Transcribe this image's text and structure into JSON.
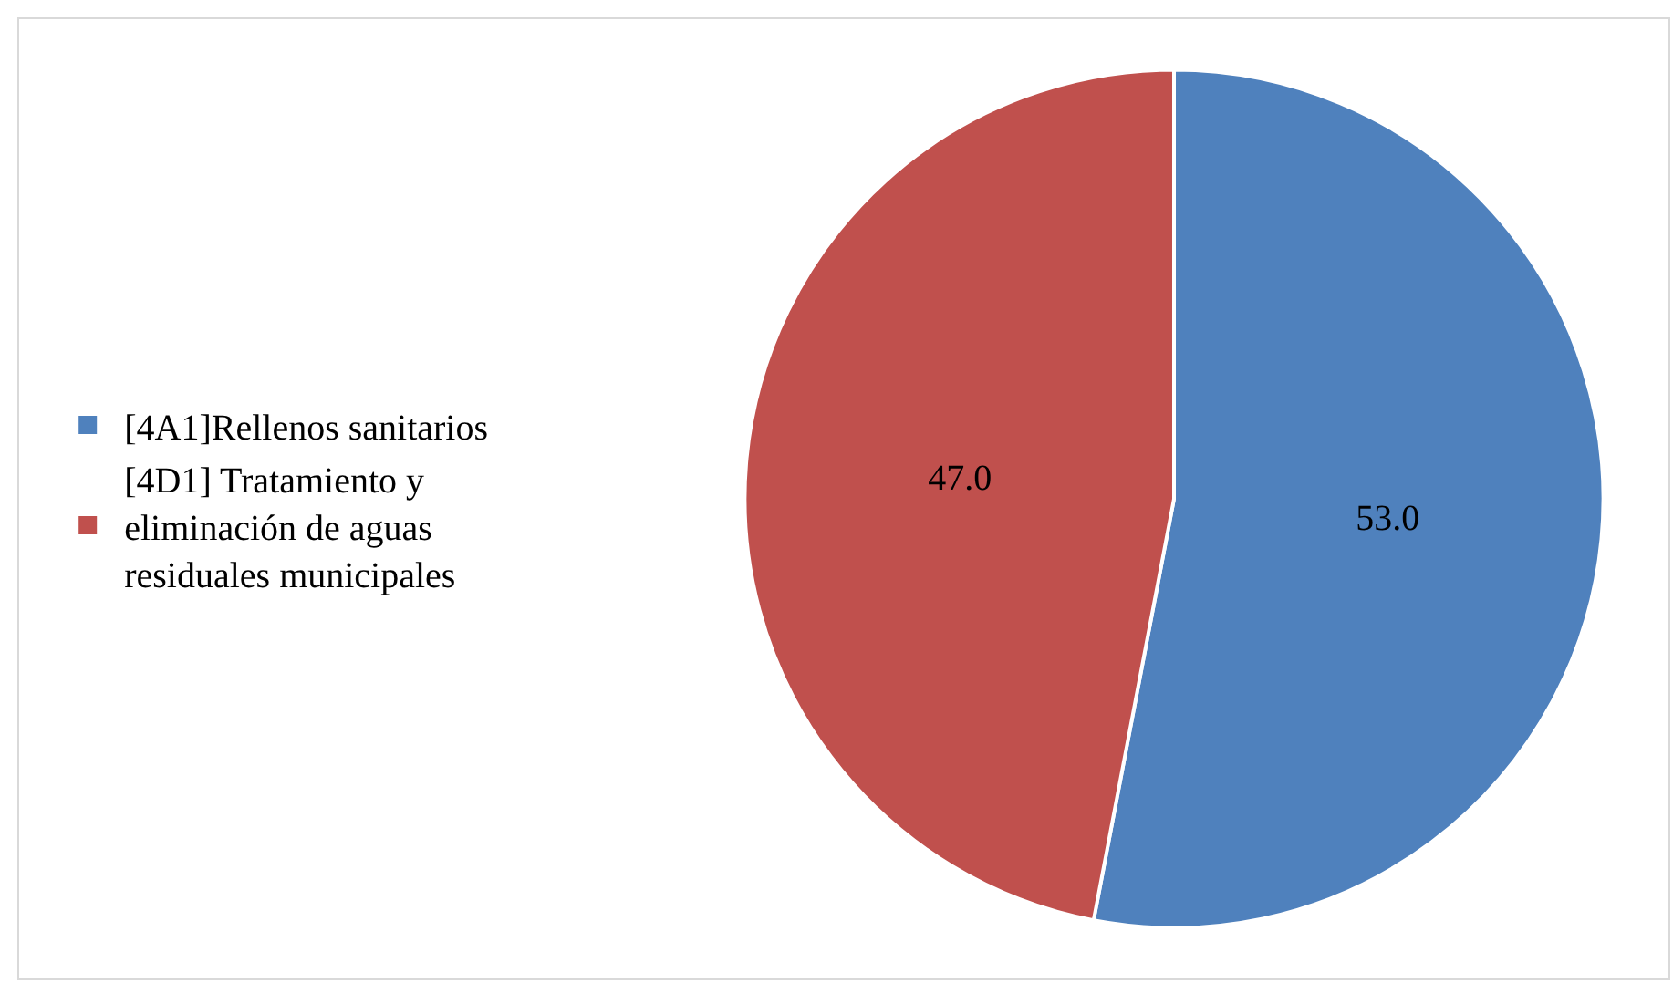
{
  "chart_data": {
    "type": "pie",
    "categories": [
      "[4A1]Rellenos sanitarios",
      "[4D1] Tratamiento y eliminación de aguas residuales municipales"
    ],
    "values": [
      53.0,
      47.0
    ],
    "colors": [
      "#4f81bd",
      "#c0504d"
    ],
    "value_labels": [
      "53.0",
      "47.0"
    ],
    "legend": "left"
  }
}
